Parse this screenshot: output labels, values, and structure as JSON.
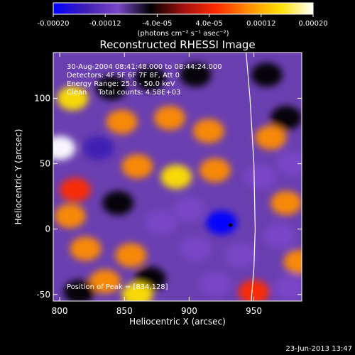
{
  "colorbar": {
    "ticks": [
      "-0.00020",
      "-0.00012",
      "-4.0e-05",
      "4.0e-05",
      "0.00012",
      "0.00020"
    ],
    "tick_values": [
      -0.0002,
      -0.00012,
      -4e-05,
      4e-05,
      0.00012,
      0.0002
    ],
    "range": [
      -0.0002,
      0.0002
    ],
    "units": "(photons cm⁻² s⁻¹ asec⁻²)",
    "colors": [
      "#0000ff",
      "#3f1fb4",
      "#7a47c8",
      "#000000",
      "#a01010",
      "#ff2a00",
      "#ff8c00",
      "#ffe000",
      "#ffffff"
    ]
  },
  "chart_data": {
    "type": "heatmap",
    "title": "Reconstructed RHESSI Image",
    "xlabel": "Heliocentric X (arcsec)",
    "ylabel": "Heliocentric Y (arcsec)",
    "xlim": [
      795,
      987
    ],
    "ylim": [
      -55,
      135
    ],
    "xticks": [
      "800",
      "850",
      "900",
      "950"
    ],
    "xtick_values": [
      800,
      850,
      900,
      950
    ],
    "yticks": [
      "-50",
      "0",
      "50",
      "100"
    ],
    "ytick_values": [
      -50,
      0,
      50,
      100
    ],
    "info_lines": [
      "30-Aug-2004 08:41:48.000 to 08:44:24.000",
      "Detectors: 4F 5F 6F 7F 8F, Att 0",
      "Energy Range: 25.0 - 50.0 keV",
      "Clean     Total counts: 4.58E+03"
    ],
    "peak_label": "Position of Peak = [834,128]",
    "marker_point": [
      932,
      3
    ],
    "limb_points": [
      [
        944,
        135
      ],
      [
        947,
        100
      ],
      [
        950,
        50
      ],
      [
        951,
        0
      ],
      [
        950,
        -30
      ],
      [
        948,
        -55
      ]
    ],
    "blobs": [
      {
        "x": 810,
        "y": 100,
        "v": 0.00014
      },
      {
        "x": 800,
        "y": 62,
        "v": 0.0002
      },
      {
        "x": 840,
        "y": 108,
        "v": -4e-05
      },
      {
        "x": 870,
        "y": 115,
        "v": -6e-05
      },
      {
        "x": 905,
        "y": 118,
        "v": -7e-05
      },
      {
        "x": 960,
        "y": 118,
        "v": -5e-05
      },
      {
        "x": 975,
        "y": 85,
        "v": -6e-05
      },
      {
        "x": 848,
        "y": 82,
        "v": 0.00012
      },
      {
        "x": 885,
        "y": 85,
        "v": 8e-05
      },
      {
        "x": 915,
        "y": 75,
        "v": 0.0001
      },
      {
        "x": 963,
        "y": 70,
        "v": 8e-05
      },
      {
        "x": 830,
        "y": 62,
        "v": -0.00014
      },
      {
        "x": 860,
        "y": 48,
        "v": 0.00012
      },
      {
        "x": 890,
        "y": 40,
        "v": 0.00014
      },
      {
        "x": 920,
        "y": 45,
        "v": 0.0001
      },
      {
        "x": 955,
        "y": 40,
        "v": -8e-05
      },
      {
        "x": 980,
        "y": 50,
        "v": -0.0001
      },
      {
        "x": 812,
        "y": 30,
        "v": 6e-05
      },
      {
        "x": 808,
        "y": 10,
        "v": 0.00012
      },
      {
        "x": 845,
        "y": 20,
        "v": -6e-05
      },
      {
        "x": 878,
        "y": 5,
        "v": -8e-05
      },
      {
        "x": 900,
        "y": 15,
        "v": -0.00012
      },
      {
        "x": 925,
        "y": 5,
        "v": -0.00018
      },
      {
        "x": 905,
        "y": -15,
        "v": -0.00012
      },
      {
        "x": 940,
        "y": -20,
        "v": -8e-05
      },
      {
        "x": 975,
        "y": 20,
        "v": 8e-05
      },
      {
        "x": 970,
        "y": -5,
        "v": -0.0001
      },
      {
        "x": 985,
        "y": -25,
        "v": 0.0001
      },
      {
        "x": 820,
        "y": -15,
        "v": 0.0001
      },
      {
        "x": 855,
        "y": -20,
        "v": 8e-05
      },
      {
        "x": 870,
        "y": -38,
        "v": -6e-05
      },
      {
        "x": 920,
        "y": -42,
        "v": -8e-05
      },
      {
        "x": 835,
        "y": -40,
        "v": 8e-05
      },
      {
        "x": 860,
        "y": -50,
        "v": 0.00016
      },
      {
        "x": 815,
        "y": -48,
        "v": -6e-05
      },
      {
        "x": 950,
        "y": -48,
        "v": 6e-05
      },
      {
        "x": 978,
        "y": -45,
        "v": -0.00012
      }
    ]
  },
  "footer": {
    "timestamp": "23-Jun-2013 13:47"
  }
}
